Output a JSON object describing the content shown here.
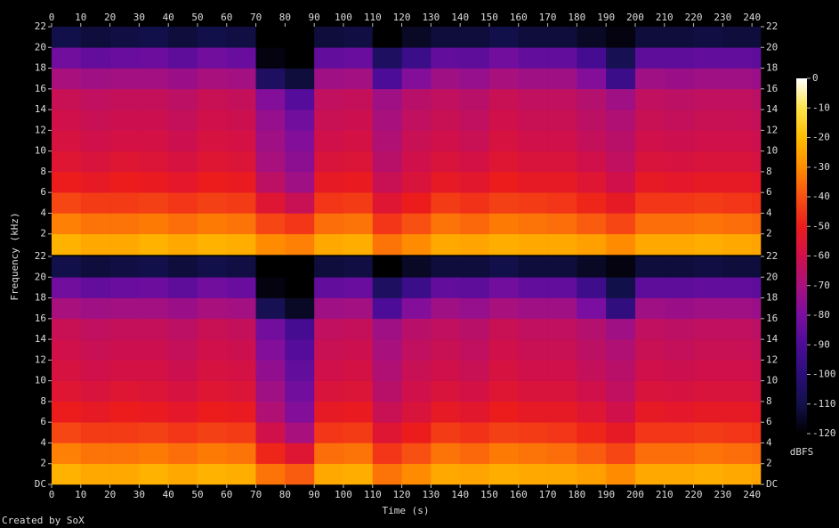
{
  "chart_data": {
    "type": "spectrogram",
    "xlabel": "Time (s)",
    "ylabel": "Frequency (kHz)",
    "footer": "Created by SoX",
    "colorbar_label": "dBFS",
    "xlim": [
      0,
      243
    ],
    "xticks": [
      0,
      10,
      20,
      30,
      40,
      50,
      60,
      70,
      80,
      90,
      100,
      110,
      120,
      130,
      140,
      150,
      160,
      170,
      180,
      190,
      200,
      210,
      220,
      230,
      240
    ],
    "time_bins": [
      0,
      10,
      20,
      30,
      40,
      50,
      60,
      70,
      80,
      90,
      100,
      110,
      120,
      130,
      140,
      150,
      160,
      170,
      180,
      190,
      200,
      210,
      220,
      230,
      240,
      243
    ],
    "freq_bins": [
      0,
      2,
      4,
      6,
      8,
      10,
      12,
      14,
      16,
      18,
      20,
      22
    ],
    "clim": [
      -120,
      0
    ],
    "cticks": [
      0,
      -10,
      -20,
      -30,
      -40,
      -50,
      -60,
      -70,
      -80,
      -90,
      -100,
      -110,
      -120
    ],
    "channels": [
      {
        "ylim": [
          0,
          22
        ],
        "yticks": [
          2,
          4,
          6,
          8,
          10,
          12,
          14,
          16,
          18,
          20,
          22
        ],
        "z": [
          [
            -22,
            -24,
            -24,
            -22,
            -24,
            -22,
            -23,
            -30,
            -32,
            -24,
            -23,
            -34,
            -30,
            -24,
            -25,
            -23,
            -24,
            -24,
            -26,
            -30,
            -24,
            -24,
            -23,
            -24,
            -25
          ],
          [
            -32,
            -34,
            -34,
            -33,
            -35,
            -33,
            -34,
            -42,
            -45,
            -35,
            -34,
            -45,
            -40,
            -34,
            -36,
            -33,
            -34,
            -35,
            -38,
            -42,
            -35,
            -35,
            -34,
            -35,
            -36
          ],
          [
            -42,
            -44,
            -44,
            -43,
            -45,
            -43,
            -44,
            -55,
            -62,
            -45,
            -44,
            -55,
            -50,
            -44,
            -46,
            -43,
            -44,
            -45,
            -48,
            -52,
            -45,
            -45,
            -44,
            -45,
            -46
          ],
          [
            -50,
            -52,
            -50,
            -51,
            -53,
            -50,
            -51,
            -65,
            -72,
            -52,
            -51,
            -62,
            -57,
            -52,
            -54,
            -50,
            -52,
            -52,
            -55,
            -60,
            -52,
            -53,
            -52,
            -52,
            -53
          ],
          [
            -55,
            -57,
            -55,
            -56,
            -58,
            -55,
            -56,
            -70,
            -76,
            -57,
            -56,
            -66,
            -60,
            -57,
            -59,
            -55,
            -57,
            -57,
            -60,
            -64,
            -57,
            -58,
            -57,
            -57,
            -58
          ],
          [
            -58,
            -60,
            -59,
            -59,
            -61,
            -58,
            -59,
            -72,
            -78,
            -60,
            -59,
            -68,
            -62,
            -60,
            -62,
            -58,
            -60,
            -60,
            -63,
            -66,
            -60,
            -61,
            -60,
            -60,
            -61
          ],
          [
            -60,
            -62,
            -61,
            -61,
            -63,
            -60,
            -61,
            -74,
            -82,
            -62,
            -61,
            -70,
            -64,
            -62,
            -64,
            -60,
            -62,
            -62,
            -65,
            -68,
            -62,
            -63,
            -62,
            -62,
            -63
          ],
          [
            -62,
            -64,
            -63,
            -63,
            -65,
            -62,
            -63,
            -78,
            -88,
            -64,
            -63,
            -72,
            -66,
            -64,
            -66,
            -62,
            -64,
            -64,
            -67,
            -72,
            -64,
            -65,
            -64,
            -64,
            -65
          ],
          [
            -70,
            -72,
            -71,
            -71,
            -73,
            -70,
            -71,
            -105,
            -112,
            -72,
            -71,
            -90,
            -78,
            -72,
            -74,
            -70,
            -72,
            -72,
            -78,
            -95,
            -72,
            -73,
            -72,
            -72,
            -73
          ],
          [
            -82,
            -85,
            -84,
            -83,
            -86,
            -82,
            -84,
            -118,
            -120,
            -85,
            -84,
            -105,
            -95,
            -85,
            -86,
            -82,
            -85,
            -85,
            -92,
            -108,
            -86,
            -86,
            -85,
            -85,
            -86
          ],
          [
            -110,
            -112,
            -111,
            -110,
            -112,
            -110,
            -111,
            -120,
            -120,
            -112,
            -111,
            -120,
            -115,
            -112,
            -112,
            -110,
            -112,
            -112,
            -115,
            -118,
            -112,
            -112,
            -111,
            -112,
            -112
          ]
        ]
      },
      {
        "ylim": [
          0,
          22
        ],
        "yticks": [
          {
            "value": 0,
            "label": "DC"
          },
          2,
          4,
          6,
          8,
          10,
          12,
          14,
          16,
          18,
          20,
          22
        ],
        "z": [
          [
            -22,
            -24,
            -24,
            -22,
            -24,
            -22,
            -23,
            -34,
            -38,
            -24,
            -23,
            -34,
            -30,
            -24,
            -25,
            -23,
            -24,
            -24,
            -26,
            -30,
            -24,
            -24,
            -23,
            -24,
            -25
          ],
          [
            -32,
            -34,
            -34,
            -33,
            -35,
            -33,
            -34,
            -48,
            -55,
            -35,
            -34,
            -45,
            -40,
            -34,
            -36,
            -33,
            -34,
            -35,
            -38,
            -42,
            -35,
            -35,
            -34,
            -35,
            -36
          ],
          [
            -42,
            -44,
            -44,
            -43,
            -45,
            -43,
            -44,
            -60,
            -70,
            -45,
            -44,
            -55,
            -50,
            -44,
            -46,
            -43,
            -44,
            -45,
            -48,
            -52,
            -45,
            -45,
            -44,
            -45,
            -46
          ],
          [
            -50,
            -52,
            -50,
            -51,
            -53,
            -50,
            -51,
            -68,
            -78,
            -52,
            -51,
            -62,
            -57,
            -52,
            -54,
            -50,
            -52,
            -52,
            -55,
            -60,
            -52,
            -53,
            -52,
            -52,
            -53
          ],
          [
            -55,
            -57,
            -55,
            -56,
            -58,
            -55,
            -56,
            -72,
            -82,
            -57,
            -56,
            -66,
            -60,
            -57,
            -59,
            -55,
            -57,
            -57,
            -60,
            -64,
            -57,
            -58,
            -57,
            -57,
            -58
          ],
          [
            -58,
            -60,
            -59,
            -59,
            -61,
            -58,
            -59,
            -75,
            -85,
            -60,
            -59,
            -68,
            -62,
            -60,
            -62,
            -58,
            -60,
            -60,
            -63,
            -66,
            -60,
            -61,
            -60,
            -60,
            -61
          ],
          [
            -60,
            -62,
            -61,
            -61,
            -63,
            -60,
            -61,
            -78,
            -88,
            -62,
            -61,
            -70,
            -64,
            -62,
            -64,
            -60,
            -62,
            -62,
            -65,
            -68,
            -62,
            -63,
            -62,
            -62,
            -63
          ],
          [
            -62,
            -64,
            -63,
            -63,
            -65,
            -62,
            -63,
            -82,
            -92,
            -64,
            -63,
            -72,
            -66,
            -64,
            -66,
            -62,
            -64,
            -64,
            -67,
            -72,
            -64,
            -65,
            -64,
            -64,
            -65
          ],
          [
            -70,
            -72,
            -71,
            -71,
            -73,
            -70,
            -71,
            -108,
            -115,
            -72,
            -71,
            -90,
            -78,
            -72,
            -74,
            -70,
            -72,
            -72,
            -80,
            -98,
            -72,
            -73,
            -72,
            -72,
            -73
          ],
          [
            -82,
            -85,
            -84,
            -83,
            -86,
            -82,
            -84,
            -118,
            -120,
            -85,
            -84,
            -105,
            -95,
            -85,
            -86,
            -82,
            -85,
            -85,
            -94,
            -110,
            -86,
            -86,
            -85,
            -85,
            -86
          ],
          [
            -110,
            -112,
            -111,
            -110,
            -112,
            -110,
            -111,
            -120,
            -120,
            -112,
            -111,
            -120,
            -115,
            -112,
            -112,
            -110,
            -112,
            -112,
            -115,
            -118,
            -112,
            -112,
            -111,
            -112,
            -112
          ]
        ]
      }
    ]
  }
}
